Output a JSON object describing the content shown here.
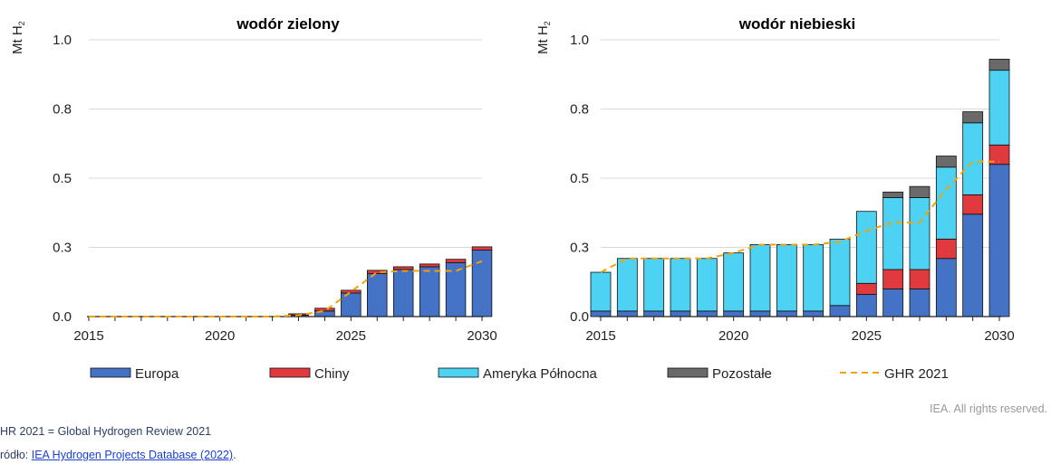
{
  "colors": {
    "europa": "#4472c4",
    "chiny": "#e0393e",
    "ameryka": "#4dd2f4",
    "pozostale": "#6a6a6a",
    "ghr": "#f0a30a"
  },
  "unit_label": "Mt H",
  "unit_sub": "2",
  "chart_data": [
    {
      "type": "bar",
      "stacked": true,
      "title": "wodór zielony",
      "ylabel": "Mt H2",
      "ylim": [
        0,
        1.0
      ],
      "yticks": [
        "0.0",
        "0.3",
        "0.5",
        "0.8",
        "1.0"
      ],
      "ytick_values": [
        0,
        0.25,
        0.5,
        0.75,
        1.0
      ],
      "x": [
        2015,
        2016,
        2017,
        2018,
        2019,
        2020,
        2021,
        2022,
        2023,
        2024,
        2025,
        2026,
        2027,
        2028,
        2029,
        2030
      ],
      "xticks": [
        "2015",
        "2020",
        "2025",
        "2030"
      ],
      "series": [
        {
          "name": "Europa",
          "values": [
            0,
            0,
            0,
            0,
            0,
            0,
            0,
            0,
            0.005,
            0.02,
            0.085,
            0.155,
            0.17,
            0.18,
            0.195,
            0.24
          ]
        },
        {
          "name": "Chiny",
          "values": [
            0,
            0,
            0,
            0,
            0,
            0,
            0,
            0,
            0.005,
            0.01,
            0.01,
            0.012,
            0.01,
            0.01,
            0.012,
            0.012
          ]
        },
        {
          "name": "Ameryka Północna",
          "values": [
            0,
            0,
            0,
            0,
            0,
            0,
            0,
            0,
            0,
            0,
            0,
            0,
            0,
            0,
            0,
            0
          ]
        },
        {
          "name": "Pozostałe",
          "values": [
            0,
            0,
            0,
            0,
            0,
            0,
            0,
            0,
            0,
            0,
            0,
            0,
            0,
            0,
            0,
            0
          ]
        }
      ],
      "line": {
        "name": "GHR 2021",
        "values": [
          0,
          0,
          0,
          0,
          0,
          0,
          0,
          0,
          0.005,
          0.02,
          0.09,
          0.16,
          0.165,
          0.165,
          0.165,
          0.2
        ]
      }
    },
    {
      "type": "bar",
      "stacked": true,
      "title": "wodór niebieski",
      "ylabel": "Mt H2",
      "ylim": [
        0,
        1.0
      ],
      "yticks": [
        "0.0",
        "0.3",
        "0.5",
        "0.8",
        "1.0"
      ],
      "ytick_values": [
        0,
        0.25,
        0.5,
        0.75,
        1.0
      ],
      "x": [
        2015,
        2016,
        2017,
        2018,
        2019,
        2020,
        2021,
        2022,
        2023,
        2024,
        2025,
        2026,
        2027,
        2028,
        2029,
        2030
      ],
      "xticks": [
        "2015",
        "2020",
        "2025",
        "2030"
      ],
      "series": [
        {
          "name": "Europa",
          "values": [
            0.02,
            0.02,
            0.02,
            0.02,
            0.02,
            0.02,
            0.02,
            0.02,
            0.02,
            0.04,
            0.08,
            0.1,
            0.1,
            0.21,
            0.37,
            0.55
          ]
        },
        {
          "name": "Chiny",
          "values": [
            0,
            0,
            0,
            0,
            0,
            0,
            0,
            0,
            0,
            0,
            0.04,
            0.07,
            0.07,
            0.07,
            0.07,
            0.07
          ]
        },
        {
          "name": "Ameryka Północna",
          "values": [
            0.14,
            0.19,
            0.19,
            0.19,
            0.19,
            0.21,
            0.24,
            0.24,
            0.24,
            0.24,
            0.26,
            0.26,
            0.26,
            0.26,
            0.26,
            0.27
          ]
        },
        {
          "name": "Pozostałe",
          "values": [
            0,
            0,
            0,
            0,
            0,
            0,
            0,
            0,
            0,
            0,
            0,
            0.02,
            0.04,
            0.04,
            0.04,
            0.04
          ]
        }
      ],
      "line": {
        "name": "GHR 2021",
        "values": [
          0.16,
          0.21,
          0.21,
          0.21,
          0.21,
          0.23,
          0.26,
          0.26,
          0.26,
          0.27,
          0.31,
          0.34,
          0.34,
          0.46,
          0.56,
          0.56
        ]
      }
    }
  ],
  "legend": [
    {
      "label": "Europa",
      "kind": "box",
      "color_key": "europa"
    },
    {
      "label": "Chiny",
      "kind": "box",
      "color_key": "chiny"
    },
    {
      "label": "Ameryka Północna",
      "kind": "box",
      "color_key": "ameryka"
    },
    {
      "label": "Pozostałe",
      "kind": "box",
      "color_key": "pozostale"
    },
    {
      "label": "GHR 2021",
      "kind": "dash",
      "color_key": "ghr"
    }
  ],
  "footer": {
    "rights": "IEA. All rights reserved.",
    "note": "HR 2021 = Global Hydrogen Review 2021",
    "source_prefix": "ródło: ",
    "source_link": "IEA Hydrogen Projects Database (2022)",
    "source_suffix": "."
  }
}
